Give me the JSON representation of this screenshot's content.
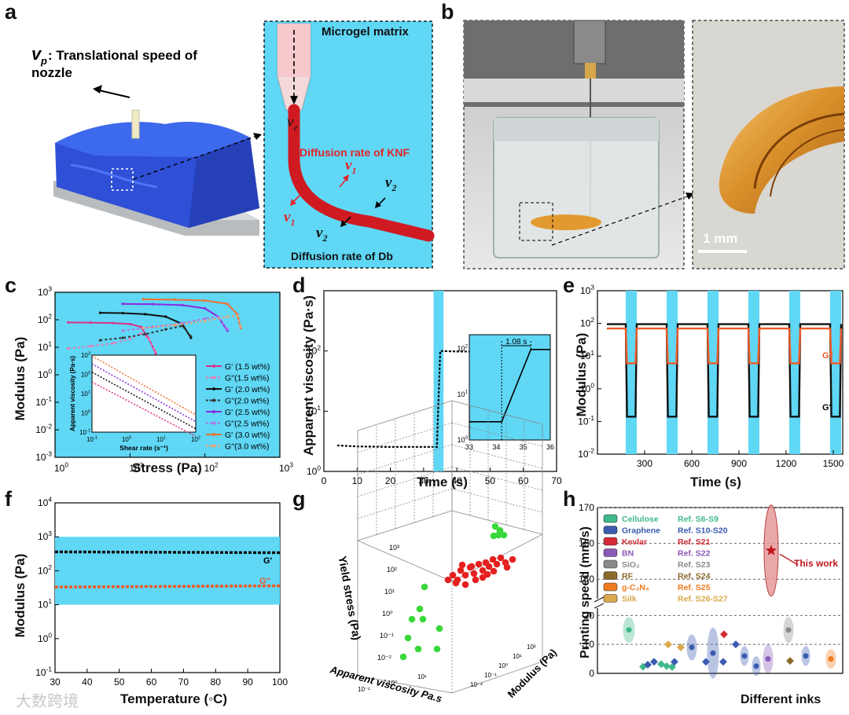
{
  "panels": {
    "a": {
      "letter": "a",
      "vp_symbol": "v",
      "vp_sub": "p",
      "vp_text": ": Translational speed of",
      "vp_text2": "nozzle",
      "matrix_label": "Microgel matrix",
      "ve_symbol": "v",
      "ve_sub": "e",
      "knf_label": "Diffusion rate of KNF",
      "db_label": "Diffusion rate of Db",
      "v1": "v",
      "v1_sub": "1",
      "v2": "v",
      "v2_sub": "2"
    },
    "b": {
      "letter": "b",
      "scale_label": "1 mm"
    },
    "c": {
      "letter": "c"
    },
    "d": {
      "letter": "d"
    },
    "e": {
      "letter": "e"
    },
    "f": {
      "letter": "f"
    },
    "g": {
      "letter": "g"
    },
    "h": {
      "letter": "h"
    }
  },
  "chart_data": [
    {
      "id": "c",
      "type": "line",
      "xlabel": "Stress (Pa)",
      "ylabel": "Modulus (Pa)",
      "xscale": "log",
      "yscale": "log",
      "xlim": [
        1,
        1000
      ],
      "ylim": [
        0.001,
        1000
      ],
      "xticks": [
        "10^0",
        "10^1",
        "10^2",
        "10^3"
      ],
      "yticks": [
        "10^-3",
        "10^-2",
        "10^-1",
        "10^0",
        "10^1",
        "10^2",
        "10^3"
      ],
      "legend": [
        "G' (1.5 wt%)",
        "G''(1.5 wt%)",
        "G' (2.0 wt%)",
        "G''(2.0 wt%)",
        "G' (2.5 wt%)",
        "G''(2.5 wt%)",
        "G' (3.0 wt%)",
        "G''(3.0 wt%)"
      ],
      "legend_position": "lower-right",
      "series": [
        {
          "legend": "G' (1.5 wt%)",
          "color": "#e0308a",
          "style": "solid",
          "x": [
            1.5,
            3,
            6,
            10,
            14,
            18,
            22
          ],
          "y": [
            80,
            79,
            76,
            70,
            55,
            20,
            6
          ]
        },
        {
          "legend": "G''(1.5 wt%)",
          "color": "#e879b4",
          "style": "dashed",
          "x": [
            1.5,
            3,
            6,
            10,
            14,
            18,
            22
          ],
          "y": [
            9,
            11,
            14,
            20,
            32,
            20,
            7
          ]
        },
        {
          "legend": "G' (2.0 wt%)",
          "color": "#111111",
          "style": "solid",
          "x": [
            4,
            8,
            16,
            30,
            50,
            65
          ],
          "y": [
            180,
            175,
            160,
            130,
            70,
            22
          ]
        },
        {
          "legend": "G''(2.0 wt%)",
          "color": "#333333",
          "style": "dashed",
          "x": [
            4,
            8,
            16,
            30,
            50,
            65
          ],
          "y": [
            18,
            22,
            30,
            45,
            60,
            25
          ]
        },
        {
          "legend": "G' (2.5 wt%)",
          "color": "#8a2be2",
          "style": "solid",
          "x": [
            8,
            20,
            50,
            100,
            150,
            200
          ],
          "y": [
            380,
            370,
            340,
            260,
            130,
            40
          ]
        },
        {
          "legend": "G''(2.5 wt%)",
          "color": "#b071e6",
          "style": "dashed",
          "x": [
            8,
            20,
            50,
            100,
            150,
            200
          ],
          "y": [
            40,
            55,
            75,
            110,
            130,
            45
          ]
        },
        {
          "legend": "G' (3.0 wt%)",
          "color": "#f07030",
          "style": "solid",
          "x": [
            15,
            40,
            100,
            200,
            270,
            300
          ],
          "y": [
            560,
            540,
            500,
            380,
            160,
            50
          ]
        },
        {
          "legend": "G''(3.0 wt%)",
          "color": "#f0a070",
          "style": "dashed",
          "x": [
            15,
            40,
            100,
            200,
            270,
            300
          ],
          "y": [
            50,
            65,
            90,
            130,
            140,
            55
          ]
        }
      ],
      "inset": {
        "xlabel": "Shear rate (s⁻¹)",
        "ylabel": "Apparent viscosity (Pa·s)",
        "xscale": "log",
        "yscale": "log",
        "xticks": [
          "10^-1",
          "10^0",
          "10^1",
          "10^2"
        ],
        "yticks": [
          "10^-1",
          "10^0",
          "10^1",
          "10^2",
          "10^3"
        ],
        "xlim": [
          0.1,
          100
        ],
        "ylim": [
          0.1,
          1000
        ],
        "series": [
          {
            "color": "#e0308a",
            "x": [
              0.1,
              100
            ],
            "y": [
              40,
              0.06
            ]
          },
          {
            "color": "#111111",
            "x": [
              0.1,
              100
            ],
            "y": [
              130,
              0.15
            ]
          },
          {
            "color": "#8a2be2",
            "x": [
              0.1,
              100
            ],
            "y": [
              350,
              0.35
            ]
          },
          {
            "color": "#f07030",
            "x": [
              0.1,
              100
            ],
            "y": [
              900,
              0.8
            ]
          }
        ]
      }
    },
    {
      "id": "d",
      "type": "line",
      "xlabel": "Time (s)",
      "ylabel": "Apparent viscosity (Pa·s)",
      "yscale": "log",
      "xlim": [
        0,
        70
      ],
      "ylim": [
        1,
        1000
      ],
      "xticks": [
        0,
        10,
        20,
        30,
        40,
        50,
        60,
        70
      ],
      "yticks": [
        "10^0",
        "10^1",
        "10^2"
      ],
      "highlight_band": [
        33,
        36
      ],
      "series": [
        {
          "x": [
            4,
            10,
            20,
            30,
            34,
            35,
            40,
            50,
            60,
            66
          ],
          "y": [
            2.7,
            2.6,
            2.55,
            2.55,
            2.55,
            100,
            98,
            97,
            97,
            97
          ]
        }
      ],
      "inset": {
        "xlim": [
          33,
          36
        ],
        "ylim": [
          1,
          200
        ],
        "xticks": [
          33,
          34,
          35,
          36
        ],
        "yticks": [
          "10^0",
          "10^1",
          "10^2"
        ],
        "annotation": "1.08 s",
        "series": [
          {
            "x": [
              33,
              34.2,
              35.28,
              36
            ],
            "y": [
              2.5,
              2.5,
              95,
              95
            ]
          }
        ]
      }
    },
    {
      "id": "e",
      "type": "line",
      "xlabel": "Time (s)",
      "ylabel": "Modulus (Pa)",
      "yscale": "log",
      "xlim": [
        0,
        1560
      ],
      "ylim": [
        0.01,
        1000
      ],
      "xticks": [
        300,
        600,
        900,
        1200,
        1500
      ],
      "yticks": [
        "10^-2",
        "10^-1",
        "10^0",
        "10^1",
        "10^2",
        "10^3"
      ],
      "bands": [
        [
          180,
          250
        ],
        [
          440,
          510
        ],
        [
          700,
          770
        ],
        [
          960,
          1030
        ],
        [
          1220,
          1290
        ],
        [
          1480,
          1550
        ]
      ],
      "series": [
        {
          "name": "G'",
          "color": "#111111",
          "high": 95,
          "low": 0.14
        },
        {
          "name": "G''",
          "color": "#f05a28",
          "high": 70,
          "low": 6
        }
      ]
    },
    {
      "id": "f",
      "type": "line",
      "xlabel": "Temperature (◦C)",
      "ylabel": "Modulus (Pa)",
      "yscale": "log",
      "xlim": [
        30,
        100
      ],
      "ylim": [
        0.1,
        10000
      ],
      "xticks": [
        30,
        40,
        50,
        60,
        70,
        80,
        90,
        100
      ],
      "yticks": [
        "10^-1",
        "10^0",
        "10^1",
        "10^2",
        "10^3",
        "10^4"
      ],
      "band": [
        10,
        1000
      ],
      "series": [
        {
          "name": "G'",
          "color": "#111111",
          "x": [
            30,
            100
          ],
          "y": [
            360,
            340
          ]
        },
        {
          "name": "G''",
          "color": "#f05a28",
          "x": [
            30,
            100
          ],
          "y": [
            33,
            36
          ]
        }
      ]
    },
    {
      "id": "g",
      "type": "scatter",
      "xlabel": "Apparent viscosity  Pa.s",
      "ylabel": "Yield stress (Pa)",
      "zlabel": "Modulus (Pa)",
      "series": [
        {
          "name": "green",
          "color": "#39d83a"
        },
        {
          "name": "red",
          "color": "#e52020"
        }
      ]
    },
    {
      "id": "h",
      "type": "scatter",
      "xlabel": "Different inks",
      "ylabel": "Printing speed (mm/s)",
      "yticks_upper": [
        150,
        160,
        170
      ],
      "yticks_lower": [
        0,
        10,
        20
      ],
      "legend": [
        {
          "name": "Cellulose",
          "ref": "Ref. S6-S9",
          "color": "#3fb98a"
        },
        {
          "name": "Graphene",
          "ref": "Ref. S10-S20",
          "color": "#3a5bb0"
        },
        {
          "name": "Kevlar",
          "ref": "Ref. S21",
          "color": "#d42a35"
        },
        {
          "name": "BN",
          "ref": "Ref. S22",
          "color": "#8a5ab8"
        },
        {
          "name": "SiO₂",
          "ref": "Ref. S23",
          "color": "#8a8a8a"
        },
        {
          "name": "RF",
          "ref": "Ref. S24",
          "color": "#8a6a2a"
        },
        {
          "name": "g-C₃N₄",
          "ref": "Ref. S25",
          "color": "#f07a20"
        },
        {
          "name": "Silk",
          "ref": "Ref. S26-S27",
          "color": "#d9a84a"
        }
      ],
      "annotation": "This work",
      "this_work_value": 158
    }
  ],
  "chart_text": {
    "c_xlabel": "Stress (Pa)",
    "c_ylabel": "Modulus (Pa)",
    "c_inset_xlabel": "Shear rate (s⁻¹)",
    "c_inset_ylabel": "Apparent viscosity (Pa·s)",
    "d_xlabel": "Time (s)",
    "d_ylabel": "Apparent viscosity (Pa·s)",
    "d_annot": "1.08 s",
    "e_xlabel": "Time (s)",
    "e_ylabel": "Modulus (Pa)",
    "e_g2": "G''",
    "e_g1": "G'",
    "f_xlabel": "Temperature (◦C)",
    "f_ylabel": "Modulus (Pa)",
    "f_g1": "G'",
    "f_g2": "G''",
    "g_ylabel": "Yield stress (Pa)",
    "g_xlabel": "Apparent viscosity  Pa.s",
    "g_zlabel": "Modulus (Pa)",
    "h_ylabel": "Printing speed (mm/s)",
    "h_xlabel": "Different inks",
    "h_thiswork": "This work"
  },
  "watermark": "大数跨境"
}
